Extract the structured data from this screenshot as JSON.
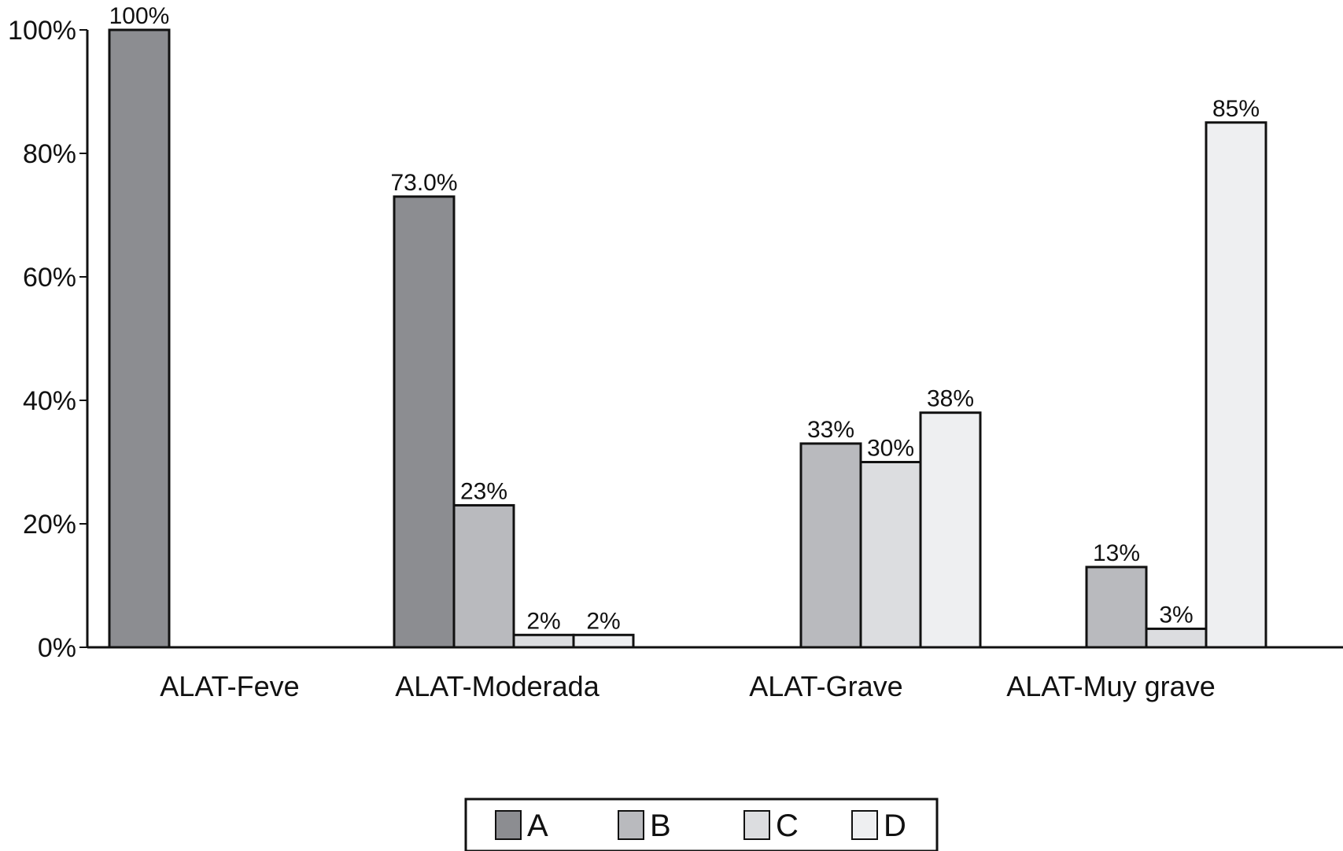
{
  "chart_data": {
    "type": "bar",
    "categories": [
      "ALAT-Feve",
      "ALAT-Moderada",
      "ALAT-Grave",
      "ALAT-Muy grave"
    ],
    "series": [
      {
        "name": "A",
        "color": "#8c8d91",
        "values": [
          100,
          73.0,
          null,
          null
        ],
        "labels": [
          "100%",
          "73.0%",
          "",
          ""
        ]
      },
      {
        "name": "B",
        "color": "#b9babe",
        "values": [
          null,
          23,
          33,
          13
        ],
        "labels": [
          "",
          "23%",
          "33%",
          "13%"
        ]
      },
      {
        "name": "C",
        "color": "#dcdde0",
        "values": [
          null,
          2,
          30,
          3
        ],
        "labels": [
          "",
          "2%",
          "30%",
          "3%"
        ]
      },
      {
        "name": "D",
        "color": "#eeeff1",
        "values": [
          null,
          2,
          38,
          85
        ],
        "labels": [
          "",
          "2%",
          "38%",
          "85%"
        ]
      }
    ],
    "ylim": [
      0,
      100
    ],
    "yticks": [
      0,
      20,
      40,
      60,
      80,
      100
    ],
    "ytick_labels": [
      "0%",
      "20%",
      "40%",
      "60%",
      "80%",
      "100%"
    ],
    "grid": false,
    "legend_position": "bottom"
  }
}
